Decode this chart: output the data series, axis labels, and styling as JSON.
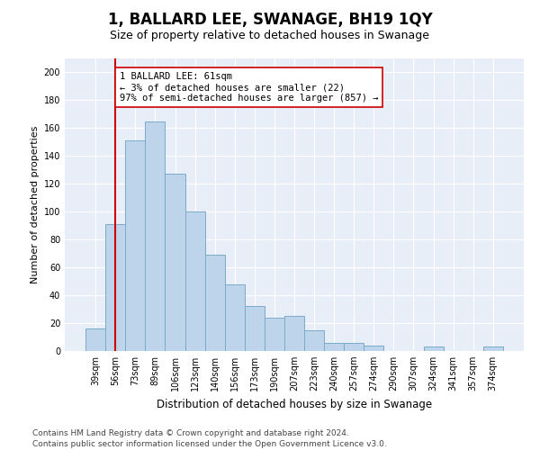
{
  "title": "1, BALLARD LEE, SWANAGE, BH19 1QY",
  "subtitle": "Size of property relative to detached houses in Swanage",
  "xlabel": "Distribution of detached houses by size in Swanage",
  "ylabel": "Number of detached properties",
  "categories": [
    "39sqm",
    "56sqm",
    "73sqm",
    "89sqm",
    "106sqm",
    "123sqm",
    "140sqm",
    "156sqm",
    "173sqm",
    "190sqm",
    "207sqm",
    "223sqm",
    "240sqm",
    "257sqm",
    "274sqm",
    "290sqm",
    "307sqm",
    "324sqm",
    "341sqm",
    "357sqm",
    "374sqm"
  ],
  "values": [
    16,
    91,
    151,
    165,
    127,
    100,
    69,
    48,
    32,
    24,
    25,
    15,
    6,
    6,
    4,
    0,
    0,
    3,
    0,
    0,
    3
  ],
  "bar_color": "#bdd4ea",
  "bar_edge_color": "#7aaaca",
  "vline_x": 1,
  "vline_color": "#cc0000",
  "annotation_text": "1 BALLARD LEE: 61sqm\n← 3% of detached houses are smaller (22)\n97% of semi-detached houses are larger (857) →",
  "annotation_box_color": "#ffffff",
  "annotation_box_edge": "#cc0000",
  "ylim": [
    0,
    210
  ],
  "yticks": [
    0,
    20,
    40,
    60,
    80,
    100,
    120,
    140,
    160,
    180,
    200
  ],
  "background_color": "#e8eef7",
  "grid_color": "#ffffff",
  "fig_background": "#ffffff",
  "footer_line1": "Contains HM Land Registry data © Crown copyright and database right 2024.",
  "footer_line2": "Contains public sector information licensed under the Open Government Licence v3.0.",
  "title_fontsize": 12,
  "subtitle_fontsize": 9,
  "xlabel_fontsize": 8.5,
  "ylabel_fontsize": 8,
  "tick_fontsize": 7,
  "footer_fontsize": 6.5,
  "annotation_fontsize": 7.5
}
